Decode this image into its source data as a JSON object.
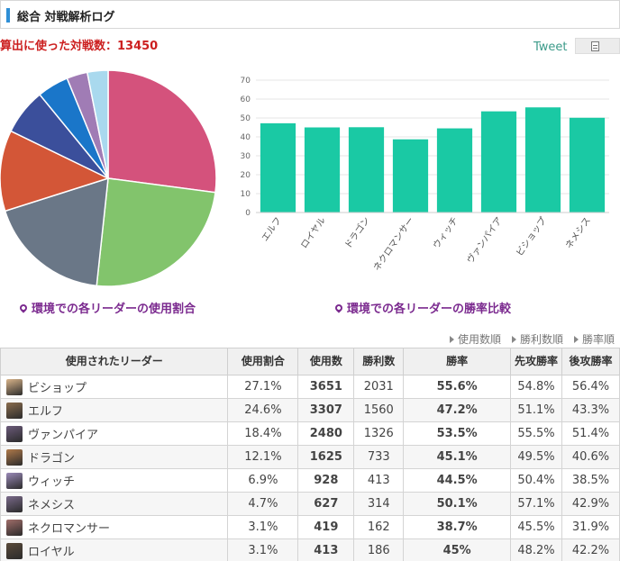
{
  "header": {
    "title": "総合 対戦解析ログ"
  },
  "battle_count_text": "算出に使った対戦数：13450",
  "tweet_label": "Tweet",
  "pie_caption": "環境での各リーダーの使用割合",
  "bar_caption": "環境での各リーダーの勝率比較",
  "sort_links": [
    "使用数順",
    "勝利数順",
    "勝率順"
  ],
  "table": {
    "headers": [
      "使用されたリーダー",
      "使用割合",
      "使用数",
      "勝利数",
      "勝率",
      "先攻勝率",
      "後攻勝率"
    ],
    "rows": [
      {
        "name": "ビショップ",
        "share": "27.1%",
        "uses": "3651",
        "wins": "2031",
        "winrate": "55.6%",
        "first": "54.8%",
        "second": "56.4%",
        "highlight": true,
        "avatar": "#d9b48a"
      },
      {
        "name": "エルフ",
        "share": "24.6%",
        "uses": "3307",
        "wins": "1560",
        "winrate": "47.2%",
        "first": "51.1%",
        "second": "43.3%",
        "highlight": false,
        "avatar": "#8a6d4e"
      },
      {
        "name": "ヴァンパイア",
        "share": "18.4%",
        "uses": "2480",
        "wins": "1326",
        "winrate": "53.5%",
        "first": "55.5%",
        "second": "51.4%",
        "highlight": true,
        "avatar": "#6b5a7a"
      },
      {
        "name": "ドラゴン",
        "share": "12.1%",
        "uses": "1625",
        "wins": "733",
        "winrate": "45.1%",
        "first": "49.5%",
        "second": "40.6%",
        "highlight": false,
        "avatar": "#b07a4a"
      },
      {
        "name": "ウィッチ",
        "share": "6.9%",
        "uses": "928",
        "wins": "413",
        "winrate": "44.5%",
        "first": "50.4%",
        "second": "38.5%",
        "highlight": false,
        "avatar": "#9a8ab8"
      },
      {
        "name": "ネメシス",
        "share": "4.7%",
        "uses": "627",
        "wins": "314",
        "winrate": "50.1%",
        "first": "57.1%",
        "second": "42.9%",
        "highlight": true,
        "avatar": "#7a6a8a"
      },
      {
        "name": "ネクロマンサー",
        "share": "3.1%",
        "uses": "419",
        "wins": "162",
        "winrate": "38.7%",
        "first": "45.5%",
        "second": "31.9%",
        "highlight": false,
        "avatar": "#a06e6a"
      },
      {
        "name": "ロイヤル",
        "share": "3.1%",
        "uses": "413",
        "wins": "186",
        "winrate": "45%",
        "first": "48.2%",
        "second": "42.2%",
        "highlight": false,
        "avatar": "#5a4a3a"
      }
    ]
  },
  "chart_data": [
    {
      "type": "pie",
      "categories": [
        "ビショップ",
        "エルフ",
        "ヴァンパイア",
        "ドラゴン",
        "ウィッチ",
        "ネメシス",
        "ネクロマンサー",
        "ロイヤル"
      ],
      "values": [
        27.1,
        24.6,
        18.4,
        12.1,
        6.9,
        4.7,
        3.1,
        3.1
      ],
      "colors": [
        "#d4527c",
        "#82c46c",
        "#6a7787",
        "#d35637",
        "#3b4f9b",
        "#1a76c9",
        "#a07cb5",
        "#a9d9ee"
      ]
    },
    {
      "type": "bar",
      "categories": [
        "エルフ",
        "ロイヤル",
        "ドラゴン",
        "ネクロマンサー",
        "ウィッチ",
        "ヴァンパイア",
        "ビショップ",
        "ネメシス"
      ],
      "values": [
        47.2,
        45,
        45.1,
        38.7,
        44.5,
        53.5,
        55.6,
        50.1
      ],
      "ylim": [
        0,
        70
      ],
      "yticks": [
        0,
        10,
        20,
        30,
        40,
        50,
        60,
        70
      ],
      "grid": true,
      "bar_color": "#1ac9a4"
    }
  ]
}
